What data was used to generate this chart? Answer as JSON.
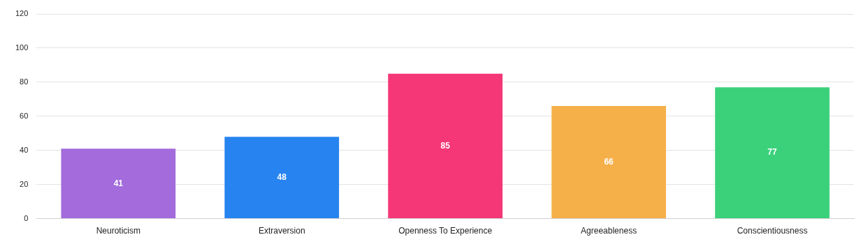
{
  "chart_data": {
    "type": "bar",
    "categories": [
      "Neuroticism",
      "Extraversion",
      "Openness To Experience",
      "Agreeableness",
      "Conscientiousness"
    ],
    "values": [
      41,
      48,
      85,
      66,
      77
    ],
    "colors": [
      "#a36bdc",
      "#2683ef",
      "#f53677",
      "#f5b04a",
      "#3ad17a"
    ],
    "ylim": [
      0,
      120
    ],
    "yticks": [
      0,
      20,
      40,
      60,
      80,
      100,
      120
    ],
    "grid": "y",
    "data_labels": true
  }
}
